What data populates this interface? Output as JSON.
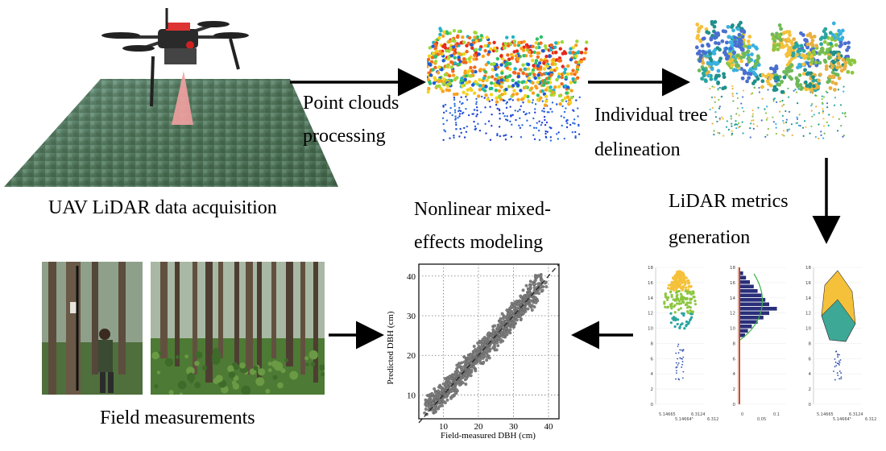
{
  "steps": {
    "uav": "UAV LiDAR data acquisition",
    "point_clouds_1": "Point clouds",
    "point_clouds_2": "processing",
    "individual_1": "Individual tree",
    "individual_2": "delineation",
    "metrics_1": "LiDAR metrics",
    "metrics_2": "generation",
    "nlme_1": "Nonlinear mixed-",
    "nlme_2": "effects modeling",
    "field": "Field measurements"
  },
  "scatter": {
    "xlabel": "Field-measured DBH (cm)",
    "ylabel": "Predicted DBH (cm)",
    "xticks": [
      "10",
      "20",
      "30",
      "40"
    ],
    "yticks": [
      "10",
      "20",
      "30",
      "40"
    ]
  },
  "metric_panels": {
    "p1_yticks": [
      "0",
      "2",
      "4",
      "6",
      "8",
      "10",
      "12",
      "14",
      "16",
      "18"
    ],
    "p1_xticks": [
      "5.14665",
      "5.14664⁵",
      "6.3124",
      "6.31238"
    ],
    "p2_yticks": [
      "0",
      "2",
      "4",
      "6",
      "8",
      "10",
      "12",
      "14",
      "16",
      "18"
    ],
    "p2_xticks": [
      "0",
      "0.05",
      "0.1"
    ],
    "p3_yticks": [
      "0",
      "2",
      "4",
      "6",
      "8",
      "10",
      "12",
      "14",
      "16",
      "18"
    ],
    "p3_xticks": [
      "5.14665",
      "5.14664⁵",
      "6.3124",
      "6.31238"
    ]
  },
  "colors": {
    "arrow": "#000000",
    "forest": "#5c7f5e",
    "laser": "#f2a0a0",
    "scatter_point": "#7f7f7f",
    "crown_yellow": "#f5c13a",
    "crown_teal": "#2aa6a0",
    "crown_blue": "#2b4fb0",
    "hist_bar": "#2a2f7a",
    "density_line": "#3cb44b"
  },
  "chart_data": {
    "type": "scatter",
    "title": "",
    "xlabel": "Field-measured DBH (cm)",
    "ylabel": "Predicted DBH (cm)",
    "xlim": [
      3,
      43
    ],
    "ylim": [
      4,
      43
    ],
    "xticks": [
      10,
      20,
      30,
      40
    ],
    "yticks": [
      10,
      20,
      30,
      40
    ],
    "grid": true,
    "reference_line": "1:1 dashed",
    "series": [
      {
        "x": [
          6,
          7,
          8,
          9,
          10,
          11,
          12,
          13,
          14,
          15,
          16,
          17,
          18,
          19,
          20,
          21,
          22,
          23,
          24,
          25,
          26,
          27,
          28,
          29,
          30,
          31,
          32,
          33,
          34,
          35,
          36,
          38
        ],
        "y": [
          7,
          8,
          8.5,
          9.5,
          10,
          11,
          12.5,
          13,
          14,
          15,
          16,
          17.5,
          18,
          19,
          20,
          21,
          22.5,
          23,
          24,
          25,
          26,
          27,
          28.5,
          29,
          30,
          31,
          32,
          33,
          34,
          35,
          38,
          39
        ]
      }
    ]
  }
}
